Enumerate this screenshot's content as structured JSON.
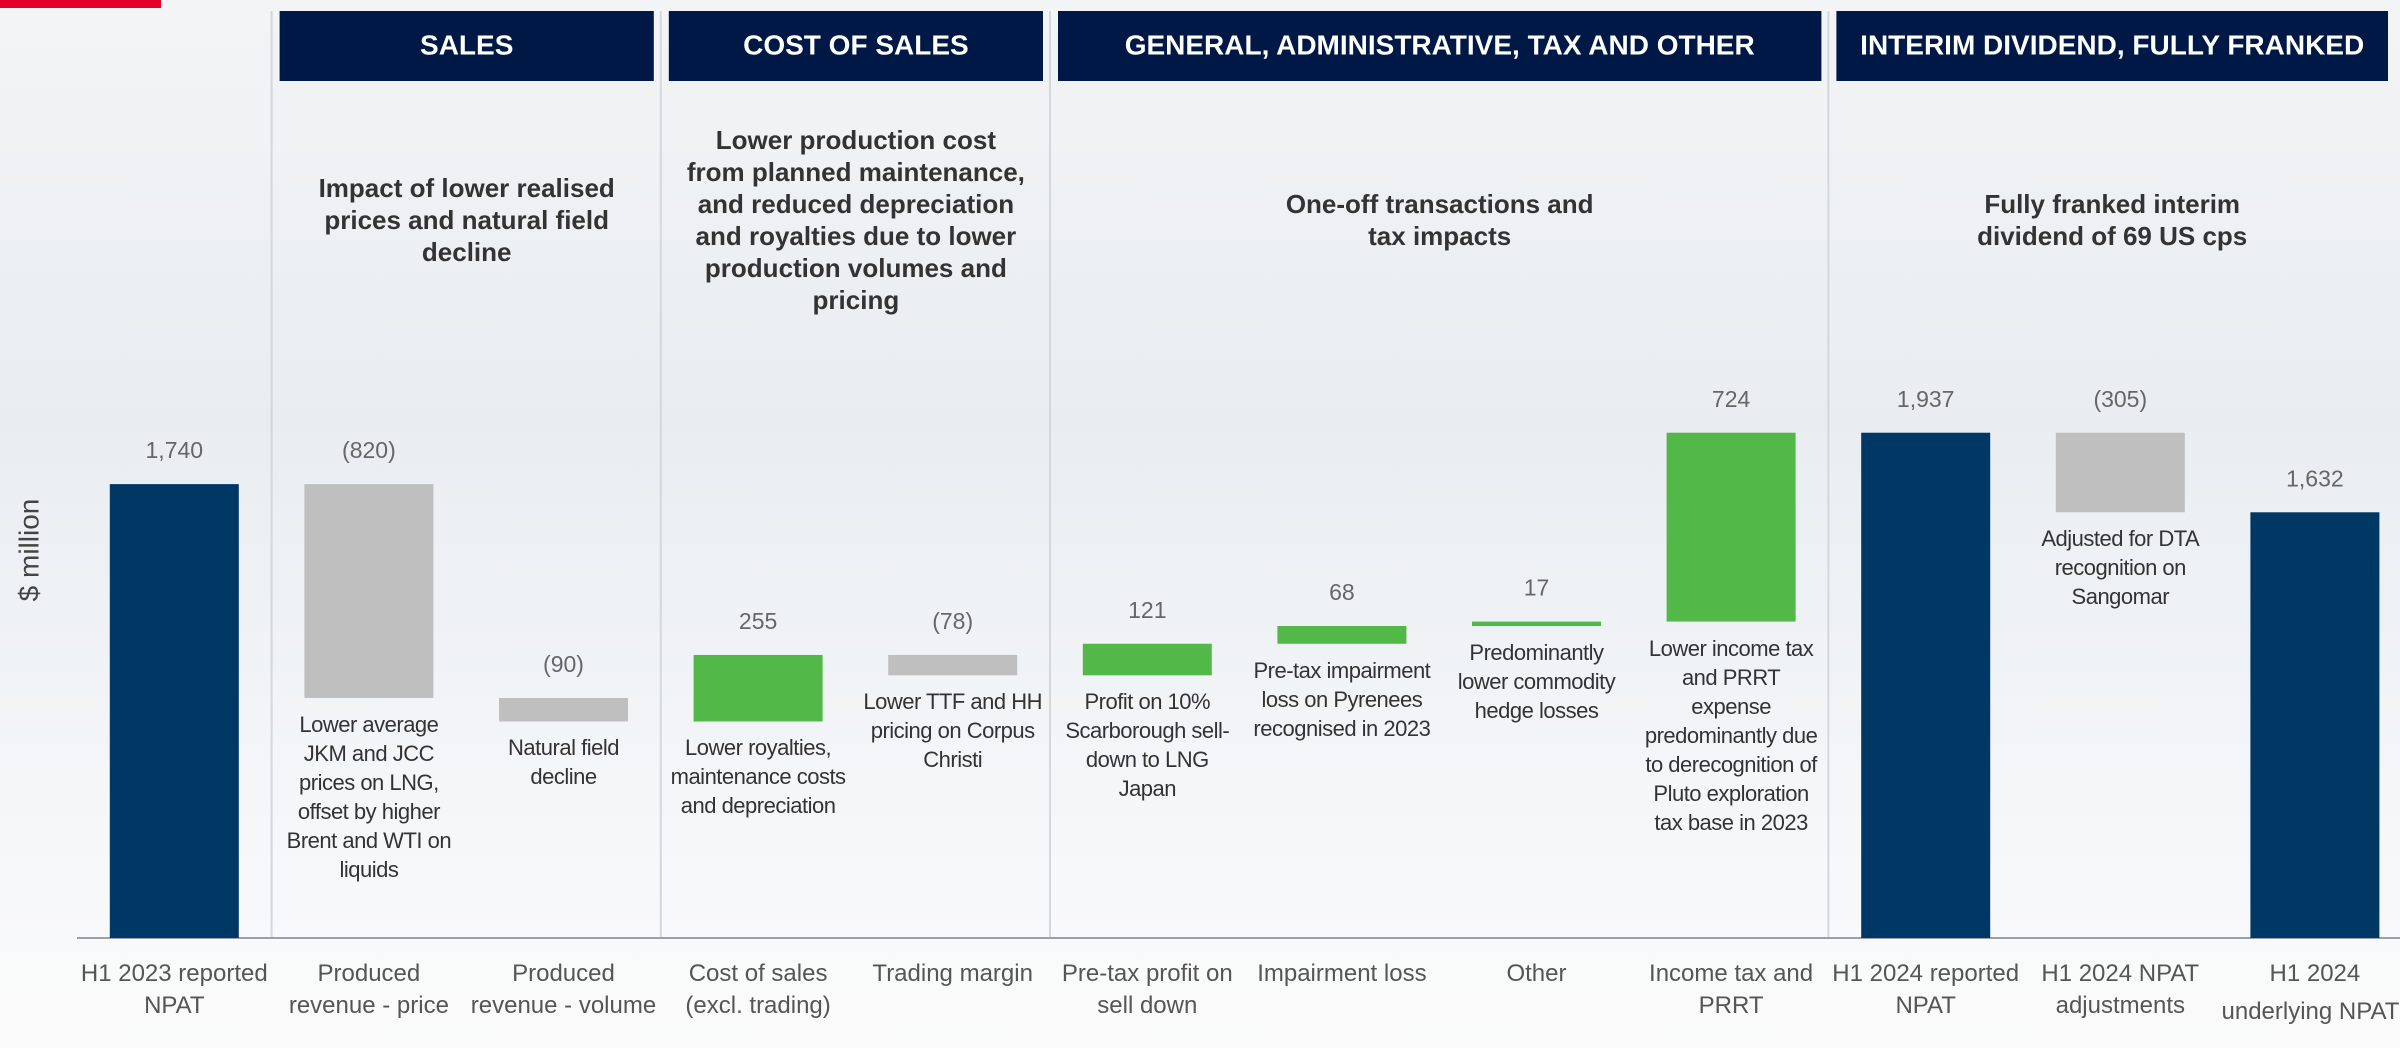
{
  "chart_data": {
    "type": "waterfall",
    "ylabel": "$ million",
    "categories": [
      "H1 2023 reported NPAT",
      "Produced revenue - price",
      "Produced revenue - volume",
      "Cost of sales (excl. trading)",
      "Trading margin",
      "Pre-tax profit on sell down",
      "Impairment loss",
      "Other",
      "Income tax and PRRT",
      "H1 2024 reported NPAT",
      "H1 2024 NPAT adjustments",
      "H1 2024 underlying NPAT"
    ],
    "footnote_marker": "1",
    "values": [
      1740,
      -820,
      -90,
      255,
      -78,
      121,
      68,
      17,
      724,
      1937,
      -305,
      1632
    ],
    "value_labels": [
      "1,740",
      "(820)",
      "(90)",
      "255",
      "(78)",
      "121",
      "68",
      "17",
      "724",
      "1,937",
      "(305)",
      "1,632"
    ],
    "measure": [
      "total",
      "relative",
      "relative",
      "relative",
      "relative",
      "relative",
      "relative",
      "relative",
      "relative",
      "total",
      "relative",
      "total"
    ],
    "colors": [
      "#003865",
      "#bfbfbf",
      "#bfbfbf",
      "#52b848",
      "#bfbfbf",
      "#52b848",
      "#52b848",
      "#52b848",
      "#52b848",
      "#003865",
      "#bfbfbf",
      "#003865"
    ],
    "annotations": [
      null,
      "Lower average JKM and JCC prices on LNG, offset by higher Brent and WTI on liquids",
      "Natural field decline",
      "Lower royalties, maintenance costs and depreciation",
      "Lower TTF and HH pricing on Corpus Christi",
      "Profit on 10% Scarborough sell-down to LNG Japan",
      "Pre-tax impairment loss on Pyrenees recognised in 2023",
      "Predominantly lower commodity hedge losses",
      "Lower income tax and PRRT expense predominantly due to derecognition of Pluto exploration tax base in 2023",
      null,
      "Adjusted for DTA recognition on Sangomar",
      null
    ],
    "sections": [
      {
        "title": "SALES",
        "description": "Impact of lower realised prices and natural field decline",
        "first": 1,
        "last": 2
      },
      {
        "title": "COST OF SALES",
        "description": "Lower production cost from planned maintenance, and reduced depreciation and royalties due to lower production volumes and pricing",
        "first": 3,
        "last": 4
      },
      {
        "title": "GENERAL, ADMINISTRATIVE, TAX AND OTHER",
        "description": "One-off transactions and tax impacts",
        "first": 5,
        "last": 8
      },
      {
        "title": "INTERIM DIVIDEND, FULLY FRANKED",
        "description": "Fully franked interim dividend of 69 US cps",
        "first": 9,
        "last": 11
      }
    ],
    "ylim": [
      0,
      3500
    ]
  }
}
